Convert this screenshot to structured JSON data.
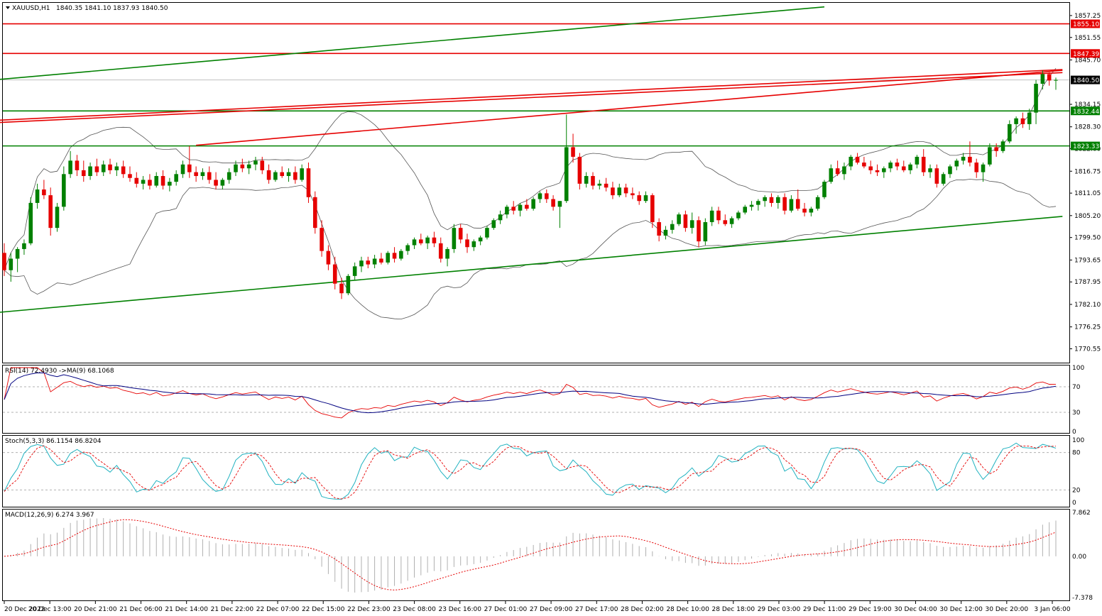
{
  "symbol_header": {
    "symbol": "XAUUSD,H1",
    "ohlc": "1840.35 1841.10 1837.93 1840.50"
  },
  "colors": {
    "bull": "#008000",
    "bear": "#e60000",
    "resistance": "#e60000",
    "support": "#008000",
    "trend": "#008000",
    "bands": "#555555",
    "rsi": "#e60000",
    "rsi_ma": "#000080",
    "stoch_main": "#20b2c0",
    "stoch_signal": "#e60000",
    "macd_hist": "#b0b0b0",
    "macd_signal": "#e60000",
    "current_price_badge": "#000000"
  },
  "price_axis": {
    "ticks": [
      "1857.25",
      "1851.55",
      "1845.70",
      "1834.15",
      "1828.30",
      "1822.60",
      "1816.75",
      "1811.05",
      "1805.20",
      "1799.50",
      "1793.65",
      "1787.95",
      "1782.10",
      "1776.25",
      "1770.55"
    ],
    "badges": [
      {
        "label": "1855.10",
        "color": "#e60000"
      },
      {
        "label": "1847.39",
        "color": "#e60000"
      },
      {
        "label": "1840.50",
        "color": "#000000"
      },
      {
        "label": "1832.44",
        "color": "#008000"
      },
      {
        "label": "1823.33",
        "color": "#008000"
      }
    ]
  },
  "time_axis": {
    "labels": [
      "20 Dec 2022",
      "20 Dec 13:00",
      "20 Dec 21:00",
      "21 Dec 06:00",
      "21 Dec 14:00",
      "21 Dec 22:00",
      "22 Dec 07:00",
      "22 Dec 15:00",
      "22 Dec 23:00",
      "23 Dec 08:00",
      "23 Dec 16:00",
      "27 Dec 01:00",
      "27 Dec 09:00",
      "27 Dec 17:00",
      "28 Dec 02:00",
      "28 Dec 10:00",
      "28 Dec 18:00",
      "29 Dec 03:00",
      "29 Dec 11:00",
      "29 Dec 19:00",
      "30 Dec 04:00",
      "30 Dec 12:00",
      "30 Dec 20:00",
      "3 Jan 06:00"
    ]
  },
  "rsi_panel": {
    "header": "RSI(14) 72.4930  ->MA(9) 68.1068",
    "ticks": [
      "100",
      "70",
      "30",
      "0"
    ]
  },
  "stoch_panel": {
    "header": "Stoch(5,3,3) 86.1154 86.8204",
    "ticks": [
      "100",
      "80",
      "20",
      "0"
    ]
  },
  "macd_panel": {
    "header": "MACD(12,26,9) 6.274 3.967",
    "ticks": [
      "7.862",
      "0.00",
      "-7.378"
    ]
  },
  "chart_data": {
    "type": "candlestick",
    "instrument": "XAUUSD",
    "timeframe": "H1",
    "ylim": [
      1767.5,
      1860.0
    ],
    "support_resistance": [
      {
        "price": 1855.1,
        "kind": "resistance"
      },
      {
        "price": 1847.39,
        "kind": "resistance"
      },
      {
        "price": 1832.44,
        "kind": "support"
      },
      {
        "price": 1823.33,
        "kind": "support"
      }
    ],
    "current_price": 1840.5,
    "candles": [
      [
        1795.5,
        1798.0,
        1789.5,
        1791.0
      ],
      [
        1791.0,
        1795.5,
        1788.0,
        1794.0
      ],
      [
        1794.0,
        1797.0,
        1790.5,
        1796.5
      ],
      [
        1796.5,
        1799.0,
        1795.0,
        1798.0
      ],
      [
        1798.0,
        1810.0,
        1797.5,
        1808.5
      ],
      [
        1808.5,
        1813.5,
        1807.0,
        1812.0
      ],
      [
        1812.0,
        1814.5,
        1809.5,
        1810.5
      ],
      [
        1810.5,
        1812.5,
        1800.0,
        1802.0
      ],
      [
        1802.0,
        1808.5,
        1801.0,
        1807.5
      ],
      [
        1807.5,
        1818.0,
        1806.5,
        1816.0
      ],
      [
        1816.0,
        1822.0,
        1815.0,
        1819.5
      ],
      [
        1819.5,
        1821.0,
        1815.5,
        1817.0
      ],
      [
        1817.0,
        1819.5,
        1814.0,
        1815.5
      ],
      [
        1815.5,
        1819.0,
        1814.5,
        1818.0
      ],
      [
        1818.0,
        1820.0,
        1815.5,
        1816.5
      ],
      [
        1816.5,
        1819.5,
        1815.5,
        1818.5
      ],
      [
        1818.5,
        1820.0,
        1816.0,
        1817.0
      ],
      [
        1817.0,
        1819.0,
        1815.5,
        1818.0
      ],
      [
        1818.0,
        1819.5,
        1815.0,
        1816.0
      ],
      [
        1816.0,
        1818.0,
        1814.0,
        1815.0
      ],
      [
        1815.0,
        1816.5,
        1812.5,
        1813.5
      ],
      [
        1813.5,
        1815.5,
        1812.0,
        1814.5
      ],
      [
        1814.5,
        1816.0,
        1812.0,
        1813.0
      ],
      [
        1813.0,
        1816.5,
        1812.5,
        1815.5
      ],
      [
        1815.5,
        1817.0,
        1812.0,
        1813.0
      ],
      [
        1813.0,
        1815.0,
        1811.5,
        1814.0
      ],
      [
        1814.0,
        1817.0,
        1813.0,
        1816.0
      ],
      [
        1816.0,
        1819.5,
        1815.0,
        1818.5
      ],
      [
        1818.5,
        1823.3,
        1815.0,
        1816.5
      ],
      [
        1816.5,
        1818.0,
        1814.0,
        1815.5
      ],
      [
        1815.5,
        1817.5,
        1814.5,
        1816.5
      ],
      [
        1816.5,
        1818.0,
        1813.5,
        1814.5
      ],
      [
        1814.5,
        1816.5,
        1812.0,
        1813.0
      ],
      [
        1813.0,
        1815.0,
        1812.0,
        1814.5
      ],
      [
        1814.5,
        1817.5,
        1813.5,
        1816.5
      ],
      [
        1816.5,
        1819.5,
        1815.5,
        1818.5
      ],
      [
        1818.5,
        1820.0,
        1816.5,
        1817.5
      ],
      [
        1817.5,
        1819.5,
        1816.0,
        1818.5
      ],
      [
        1818.5,
        1820.5,
        1817.0,
        1819.5
      ],
      [
        1819.5,
        1820.5,
        1816.0,
        1817.0
      ],
      [
        1817.0,
        1818.5,
        1813.5,
        1814.5
      ],
      [
        1814.5,
        1817.0,
        1814.0,
        1816.5
      ],
      [
        1816.5,
        1818.0,
        1815.0,
        1815.5
      ],
      [
        1815.5,
        1817.5,
        1814.0,
        1816.5
      ],
      [
        1816.5,
        1818.0,
        1813.5,
        1814.5
      ],
      [
        1814.5,
        1818.5,
        1814.0,
        1817.5
      ],
      [
        1817.5,
        1819.0,
        1808.5,
        1810.0
      ],
      [
        1810.0,
        1811.5,
        1800.5,
        1802.0
      ],
      [
        1802.0,
        1804.0,
        1794.5,
        1796.0
      ],
      [
        1796.0,
        1797.5,
        1791.0,
        1792.5
      ],
      [
        1792.5,
        1794.5,
        1786.0,
        1787.5
      ],
      [
        1787.5,
        1789.0,
        1783.5,
        1785.0
      ],
      [
        1785.0,
        1790.0,
        1784.5,
        1789.5
      ],
      [
        1789.5,
        1793.0,
        1788.5,
        1792.0
      ],
      [
        1792.0,
        1794.5,
        1790.5,
        1793.5
      ],
      [
        1793.5,
        1794.5,
        1791.5,
        1792.5
      ],
      [
        1792.5,
        1795.0,
        1791.5,
        1794.0
      ],
      [
        1794.0,
        1795.5,
        1792.5,
        1793.0
      ],
      [
        1793.0,
        1796.0,
        1792.5,
        1795.5
      ],
      [
        1795.5,
        1797.0,
        1793.0,
        1794.0
      ],
      [
        1794.0,
        1796.5,
        1793.5,
        1796.0
      ],
      [
        1796.0,
        1798.0,
        1795.0,
        1797.5
      ],
      [
        1797.5,
        1799.5,
        1796.5,
        1799.0
      ],
      [
        1799.0,
        1800.5,
        1797.5,
        1798.0
      ],
      [
        1798.0,
        1800.0,
        1796.5,
        1799.5
      ],
      [
        1799.5,
        1801.0,
        1797.0,
        1798.0
      ],
      [
        1798.0,
        1799.5,
        1793.0,
        1794.0
      ],
      [
        1794.0,
        1797.0,
        1792.0,
        1796.5
      ],
      [
        1796.5,
        1803.0,
        1795.5,
        1802.0
      ],
      [
        1802.0,
        1803.0,
        1798.0,
        1799.0
      ],
      [
        1799.0,
        1800.5,
        1795.5,
        1797.0
      ],
      [
        1797.0,
        1799.0,
        1796.0,
        1798.5
      ],
      [
        1798.5,
        1800.0,
        1797.5,
        1799.5
      ],
      [
        1799.5,
        1802.5,
        1799.0,
        1802.0
      ],
      [
        1802.0,
        1804.5,
        1801.5,
        1804.0
      ],
      [
        1804.0,
        1806.5,
        1803.0,
        1805.5
      ],
      [
        1805.5,
        1808.0,
        1804.5,
        1807.5
      ],
      [
        1807.5,
        1809.0,
        1805.5,
        1806.5
      ],
      [
        1806.5,
        1808.5,
        1805.0,
        1808.0
      ],
      [
        1808.0,
        1809.5,
        1806.5,
        1807.0
      ],
      [
        1807.0,
        1810.0,
        1806.5,
        1809.5
      ],
      [
        1809.5,
        1811.5,
        1808.5,
        1811.0
      ],
      [
        1811.0,
        1812.0,
        1808.5,
        1809.5
      ],
      [
        1809.5,
        1810.5,
        1806.5,
        1807.5
      ],
      [
        1807.5,
        1809.0,
        1802.0,
        1809.0
      ],
      [
        1809.0,
        1831.5,
        1808.5,
        1823.0
      ],
      [
        1823.0,
        1826.5,
        1819.0,
        1820.5
      ],
      [
        1820.5,
        1821.5,
        1812.0,
        1813.5
      ],
      [
        1813.5,
        1816.5,
        1812.5,
        1815.5
      ],
      [
        1815.5,
        1816.5,
        1812.0,
        1813.0
      ],
      [
        1813.0,
        1814.5,
        1812.0,
        1813.5
      ],
      [
        1813.5,
        1815.0,
        1811.5,
        1812.5
      ],
      [
        1812.5,
        1814.0,
        1809.5,
        1810.5
      ],
      [
        1810.5,
        1813.5,
        1810.0,
        1812.5
      ],
      [
        1812.5,
        1813.5,
        1810.0,
        1811.0
      ],
      [
        1811.0,
        1812.5,
        1809.5,
        1810.5
      ],
      [
        1810.5,
        1811.5,
        1808.0,
        1809.0
      ],
      [
        1809.0,
        1811.5,
        1808.5,
        1810.5
      ],
      [
        1810.5,
        1811.0,
        1802.0,
        1803.5
      ],
      [
        1803.5,
        1804.5,
        1798.5,
        1800.0
      ],
      [
        1800.0,
        1802.5,
        1799.0,
        1801.5
      ],
      [
        1801.5,
        1804.0,
        1800.5,
        1803.0
      ],
      [
        1803.0,
        1806.0,
        1802.5,
        1805.5
      ],
      [
        1805.5,
        1806.5,
        1801.0,
        1802.0
      ],
      [
        1802.0,
        1806.0,
        1800.5,
        1804.0
      ],
      [
        1804.0,
        1805.0,
        1797.0,
        1798.5
      ],
      [
        1798.5,
        1804.5,
        1797.5,
        1803.5
      ],
      [
        1803.5,
        1807.5,
        1802.5,
        1806.5
      ],
      [
        1806.5,
        1807.5,
        1803.0,
        1804.0
      ],
      [
        1804.0,
        1805.5,
        1802.5,
        1803.0
      ],
      [
        1803.0,
        1805.0,
        1802.0,
        1804.5
      ],
      [
        1804.5,
        1806.5,
        1804.0,
        1806.0
      ],
      [
        1806.0,
        1808.0,
        1805.5,
        1807.5
      ],
      [
        1807.5,
        1809.0,
        1806.5,
        1808.0
      ],
      [
        1808.0,
        1809.5,
        1806.5,
        1809.0
      ],
      [
        1809.0,
        1810.5,
        1807.5,
        1810.0
      ],
      [
        1810.0,
        1811.0,
        1807.5,
        1808.5
      ],
      [
        1808.5,
        1810.5,
        1807.0,
        1810.0
      ],
      [
        1810.0,
        1811.0,
        1805.5,
        1806.5
      ],
      [
        1806.5,
        1810.5,
        1806.0,
        1809.5
      ],
      [
        1809.5,
        1812.0,
        1806.5,
        1807.0
      ],
      [
        1807.0,
        1808.5,
        1805.0,
        1806.0
      ],
      [
        1806.0,
        1807.5,
        1805.0,
        1807.0
      ],
      [
        1807.0,
        1810.5,
        1806.5,
        1810.0
      ],
      [
        1810.0,
        1814.5,
        1809.5,
        1814.0
      ],
      [
        1814.0,
        1818.5,
        1813.5,
        1817.5
      ],
      [
        1817.5,
        1819.5,
        1815.5,
        1816.0
      ],
      [
        1816.0,
        1819.0,
        1814.5,
        1818.0
      ],
      [
        1818.0,
        1821.0,
        1817.0,
        1820.5
      ],
      [
        1820.5,
        1821.5,
        1818.5,
        1819.0
      ],
      [
        1819.0,
        1820.5,
        1817.5,
        1818.0
      ],
      [
        1818.0,
        1819.5,
        1816.0,
        1817.0
      ],
      [
        1817.0,
        1818.5,
        1815.5,
        1816.5
      ],
      [
        1816.5,
        1818.0,
        1815.0,
        1817.5
      ],
      [
        1817.5,
        1819.5,
        1816.5,
        1819.0
      ],
      [
        1819.0,
        1820.0,
        1817.0,
        1818.0
      ],
      [
        1818.0,
        1819.5,
        1816.5,
        1817.0
      ],
      [
        1817.0,
        1819.0,
        1816.0,
        1818.5
      ],
      [
        1818.5,
        1821.0,
        1817.5,
        1820.5
      ],
      [
        1820.5,
        1822.5,
        1815.5,
        1816.5
      ],
      [
        1816.5,
        1818.5,
        1815.0,
        1817.5
      ],
      [
        1817.5,
        1818.5,
        1812.5,
        1813.5
      ],
      [
        1813.5,
        1816.5,
        1813.0,
        1816.0
      ],
      [
        1816.0,
        1818.5,
        1815.0,
        1818.0
      ],
      [
        1818.0,
        1820.0,
        1817.0,
        1819.5
      ],
      [
        1819.5,
        1821.5,
        1818.5,
        1820.5
      ],
      [
        1820.5,
        1824.5,
        1818.0,
        1819.0
      ],
      [
        1819.0,
        1820.0,
        1815.0,
        1816.5
      ],
      [
        1816.5,
        1819.0,
        1814.0,
        1818.5
      ],
      [
        1818.5,
        1824.0,
        1818.0,
        1823.0
      ],
      [
        1823.0,
        1824.0,
        1820.5,
        1822.0
      ],
      [
        1822.0,
        1825.0,
        1821.5,
        1824.5
      ],
      [
        1824.5,
        1830.0,
        1824.0,
        1829.0
      ],
      [
        1829.0,
        1831.0,
        1826.5,
        1830.5
      ],
      [
        1830.5,
        1832.0,
        1828.0,
        1829.0
      ],
      [
        1829.0,
        1833.0,
        1827.5,
        1832.0
      ],
      [
        1832.0,
        1840.5,
        1829.0,
        1839.5
      ],
      [
        1839.5,
        1843.0,
        1838.0,
        1842.0
      ],
      [
        1842.0,
        1842.5,
        1839.0,
        1840.35
      ],
      [
        1840.35,
        1841.1,
        1837.93,
        1840.5
      ]
    ],
    "rsi": {
      "last": 72.493,
      "ma9": 68.1068
    },
    "stochastic": {
      "main": 86.1154,
      "signal": 86.8204
    },
    "macd": {
      "main": 6.274,
      "signal": 3.967
    }
  }
}
